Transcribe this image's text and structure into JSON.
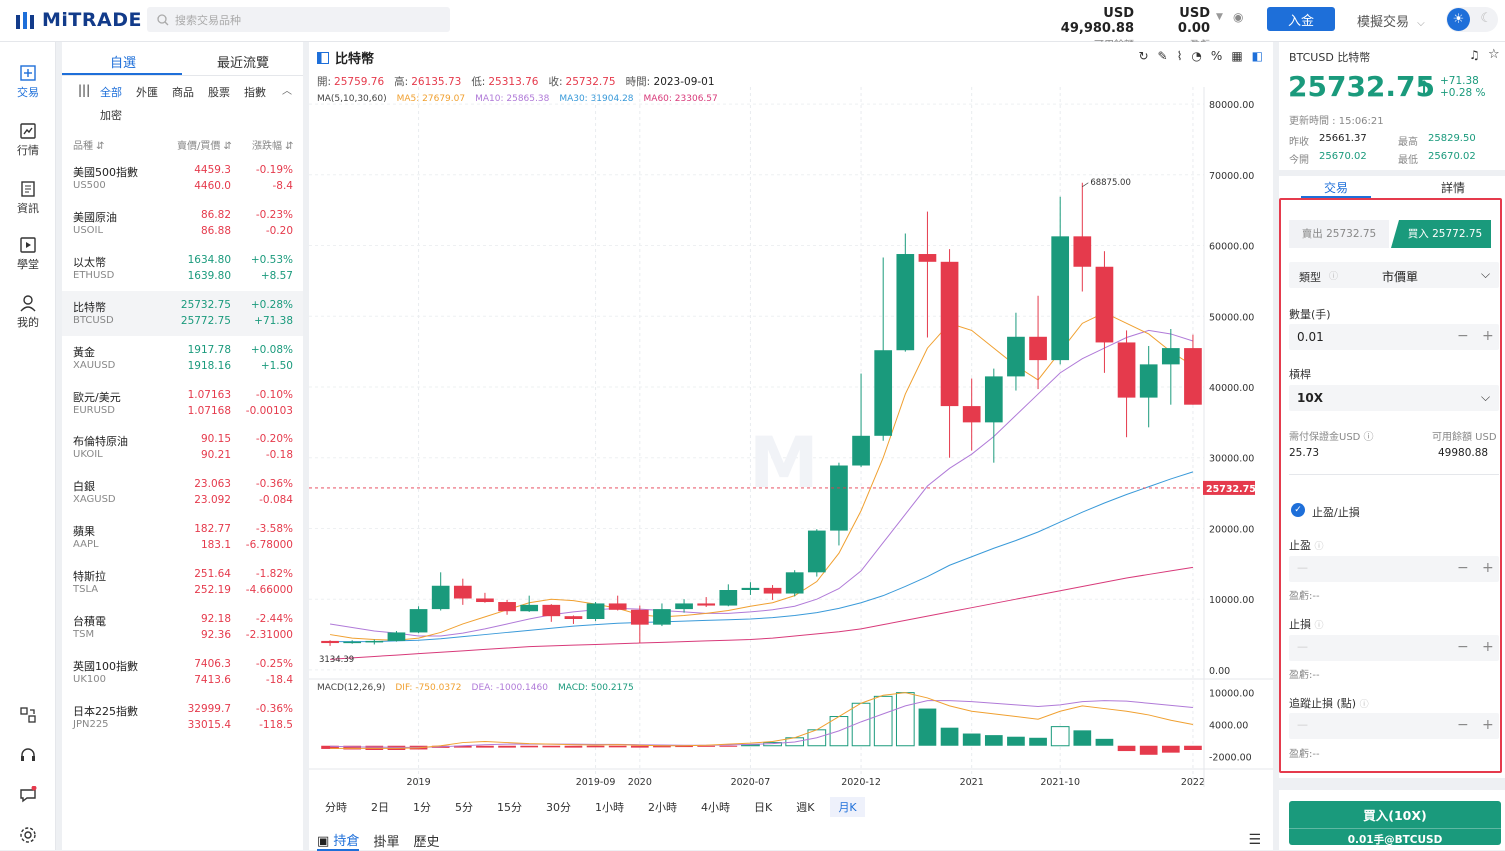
{
  "brand": {
    "name": "MiTRADE"
  },
  "search": {
    "placeholder": "搜索交易品种"
  },
  "account": {
    "available_value": "USD 49,980.88",
    "available_label": "可用餘額",
    "pnl_value": "USD 0.00",
    "pnl_label": "盈虧"
  },
  "header": {
    "deposit": "入金",
    "mode": "模擬交易"
  },
  "nav": [
    {
      "label": "交易",
      "icon": "trade-icon"
    },
    {
      "label": "行情",
      "icon": "chart-icon"
    },
    {
      "label": "資訊",
      "icon": "news-icon"
    },
    {
      "label": "學堂",
      "icon": "play-icon"
    },
    {
      "label": "我的",
      "icon": "user-icon"
    }
  ],
  "watchlist": {
    "tabs": [
      "自選",
      "最近流覽"
    ],
    "categories": [
      "全部",
      "外匯",
      "商品",
      "股票",
      "指數",
      "加密"
    ],
    "columns": [
      "品種",
      "賣價/買價",
      "漲跌幅"
    ],
    "rows": [
      {
        "name": "美國500指數",
        "code": "US500",
        "bid": "4459.3",
        "ask": "4460.0",
        "pct": "-0.19%",
        "chg": "-8.4",
        "dir": "dn"
      },
      {
        "name": "美國原油",
        "code": "USOIL",
        "bid": "86.82",
        "ask": "86.88",
        "pct": "-0.23%",
        "chg": "-0.20",
        "dir": "dn"
      },
      {
        "name": "以太幣",
        "code": "ETHUSD",
        "bid": "1634.80",
        "ask": "1639.80",
        "pct": "+0.53%",
        "chg": "+8.57",
        "dir": "up"
      },
      {
        "name": "比特幣",
        "code": "BTCUSD",
        "bid": "25732.75",
        "ask": "25772.75",
        "pct": "+0.28%",
        "chg": "+71.38",
        "dir": "up"
      },
      {
        "name": "黃金",
        "code": "XAUUSD",
        "bid": "1917.78",
        "ask": "1918.16",
        "pct": "+0.08%",
        "chg": "+1.50",
        "dir": "up"
      },
      {
        "name": "歐元/美元",
        "code": "EURUSD",
        "bid": "1.07163",
        "ask": "1.07168",
        "pct": "-0.10%",
        "chg": "-0.00103",
        "dir": "dn"
      },
      {
        "name": "布倫特原油",
        "code": "UKOIL",
        "bid": "90.15",
        "ask": "90.21",
        "pct": "-0.20%",
        "chg": "-0.18",
        "dir": "dn"
      },
      {
        "name": "白銀",
        "code": "XAGUSD",
        "bid": "23.063",
        "ask": "23.092",
        "pct": "-0.36%",
        "chg": "-0.084",
        "dir": "dn"
      },
      {
        "name": "蘋果",
        "code": "AAPL",
        "bid": "182.77",
        "ask": "183.1",
        "pct": "-3.58%",
        "chg": "-6.78000",
        "dir": "dn"
      },
      {
        "name": "特斯拉",
        "code": "TSLA",
        "bid": "251.64",
        "ask": "252.19",
        "pct": "-1.82%",
        "chg": "-4.66000",
        "dir": "dn"
      },
      {
        "name": "台積電",
        "code": "TSM",
        "bid": "92.18",
        "ask": "92.36",
        "pct": "-2.44%",
        "chg": "-2.31000",
        "dir": "dn"
      },
      {
        "name": "英國100指數",
        "code": "UK100",
        "bid": "7406.3",
        "ask": "7413.6",
        "pct": "-0.25%",
        "chg": "-18.4",
        "dir": "dn"
      },
      {
        "name": "日本225指數",
        "code": "JPN225",
        "bid": "32999.7",
        "ask": "33015.4",
        "pct": "-0.36%",
        "chg": "-118.5",
        "dir": "dn"
      }
    ]
  },
  "chart_header": {
    "title": "比特幣",
    "ohlc": [
      {
        "k": "開:",
        "v": "25759.76"
      },
      {
        "k": "高:",
        "v": "26135.73"
      },
      {
        "k": "低:",
        "v": "25313.76"
      },
      {
        "k": "收:",
        "v": "25732.75"
      }
    ],
    "time_label": "時間:",
    "time_value": "2023-09-01",
    "ma_legend": {
      "name": "MA(5,10,30,60)",
      "ma5": "MA5: 27679.07",
      "ma10": "MA10: 25865.38",
      "ma30": "MA30: 31904.28",
      "ma60": "MA60: 23306.57"
    },
    "macd_legend": {
      "name": "MACD(12,26,9)",
      "dif": "DIF: -750.0372",
      "dea": "DEA: -1000.1460",
      "macd": "MACD: 500.2175"
    },
    "colors": {
      "up": "#1a9a7c",
      "down": "#e53a4c",
      "ma5": "#f0a030",
      "ma10": "#b07ad8",
      "ma30": "#3a9ad9",
      "ma60": "#d83a7a"
    }
  },
  "chart_data": {
    "type": "candlestick",
    "x_tick_labels": [
      "2019",
      "2019-09",
      "2020",
      "2020-07",
      "2020-12",
      "2021",
      "2021-10",
      "2022"
    ],
    "y_tick_labels": [
      "80000.00",
      "70000.00",
      "60000.00",
      "50000.00",
      "40000.00",
      "30000.00",
      "20000.00",
      "10000.00",
      "0.00"
    ],
    "ylim": [
      -1000,
      81000
    ],
    "current_price": "25732.75",
    "max_label": "68875.00",
    "min_label": "3134.39",
    "candles": [
      [
        4100,
        3800,
        4200,
        3400
      ],
      [
        3800,
        4000,
        4200,
        3700
      ],
      [
        4000,
        4100,
        4300,
        3600
      ],
      [
        4100,
        5300,
        5500,
        4000
      ],
      [
        5300,
        8600,
        9000,
        5200
      ],
      [
        8600,
        11900,
        13800,
        8400
      ],
      [
        11900,
        10100,
        12900,
        9200
      ],
      [
        10100,
        9600,
        10900,
        9500
      ],
      [
        9600,
        8300,
        9900,
        7800
      ],
      [
        8300,
        9200,
        10500,
        8200
      ],
      [
        9200,
        7600,
        9300,
        6800
      ],
      [
        7600,
        7200,
        7700,
        6500
      ],
      [
        7200,
        9400,
        9600,
        6900
      ],
      [
        9400,
        8500,
        10500,
        8400
      ],
      [
        8500,
        6400,
        9100,
        3800
      ],
      [
        6400,
        8600,
        9400,
        6200
      ],
      [
        8600,
        9400,
        10000,
        8100
      ],
      [
        9400,
        9100,
        10300,
        8900
      ],
      [
        9100,
        11300,
        12100,
        9000
      ],
      [
        11300,
        11600,
        12400,
        10600
      ],
      [
        11600,
        10800,
        12000,
        9900
      ],
      [
        10800,
        13800,
        14100,
        10400
      ],
      [
        13800,
        19700,
        19900,
        13200
      ],
      [
        19700,
        28900,
        29300,
        17600
      ],
      [
        28900,
        33100,
        41900,
        28700
      ],
      [
        33100,
        45200,
        58300,
        32400
      ],
      [
        45200,
        58800,
        61700,
        45000
      ],
      [
        58800,
        57700,
        64800,
        47000
      ],
      [
        57700,
        37300,
        59500,
        30000
      ],
      [
        37300,
        35000,
        41200,
        31000
      ],
      [
        35000,
        41500,
        42600,
        29300
      ],
      [
        41500,
        47100,
        50500,
        39500
      ],
      [
        47100,
        43800,
        52900,
        39700
      ],
      [
        43800,
        61300,
        66900,
        43200
      ],
      [
        61300,
        57000,
        68875,
        53500
      ],
      [
        57000,
        46300,
        59200,
        42000
      ],
      [
        46300,
        38500,
        48000,
        32900
      ],
      [
        38500,
        43200,
        45800,
        34300
      ],
      [
        43200,
        45500,
        48200,
        37500
      ],
      [
        45500,
        37500,
        47400,
        37500
      ]
    ],
    "y2_tick_labels": [
      "10000.00",
      "4000.00",
      "-2000.00"
    ],
    "y2lim": [
      -4000,
      12000
    ],
    "macd_hist": [
      -600,
      -700,
      -800,
      -800,
      -700,
      -400,
      -350,
      -350,
      -350,
      -300,
      -300,
      -350,
      -300,
      -300,
      -350,
      -300,
      -250,
      -200,
      -100,
      200,
      600,
      1500,
      3000,
      5500,
      8000,
      9300,
      10000,
      7000,
      3400,
      2300,
      2000,
      1700,
      1500,
      3600,
      2900,
      1300,
      -1000,
      -1700,
      -1300,
      -800
    ],
    "macd_dif": [
      -500,
      -500,
      -500,
      -500,
      -400,
      0,
      600,
      800,
      600,
      400,
      300,
      200,
      150,
      200,
      100,
      0,
      0,
      100,
      300,
      500,
      800,
      1500,
      3000,
      5500,
      8000,
      9500,
      10000,
      9000,
      7500,
      6500,
      6000,
      5500,
      5000,
      6500,
      7500,
      7000,
      6500,
      5800,
      4800,
      4000
    ],
    "macd_dea": [
      -100,
      -200,
      -250,
      -300,
      -300,
      -200,
      0,
      200,
      300,
      300,
      300,
      300,
      250,
      250,
      200,
      150,
      100,
      100,
      150,
      250,
      400,
      700,
      1500,
      2800,
      4500,
      6000,
      7500,
      8500,
      8500,
      8300,
      8000,
      7700,
      7400,
      7700,
      8300,
      8500,
      8400,
      8000,
      7600,
      7200
    ],
    "ma5": [
      5000,
      4500,
      4300,
      4200,
      4500,
      5300,
      6500,
      7500,
      8500,
      9500,
      10000,
      9800,
      9300,
      8700,
      7800,
      7500,
      7700,
      8000,
      8400,
      9000,
      9500,
      10500,
      12500,
      16500,
      22500,
      30000,
      39000,
      45500,
      49000,
      48000,
      45500,
      43000,
      41000,
      45000,
      49000,
      50500,
      49000,
      47500,
      45000,
      43000
    ],
    "ma10": [
      6500,
      6000,
      5500,
      5200,
      4800,
      4800,
      5200,
      5800,
      6500,
      7200,
      7800,
      8200,
      8500,
      8700,
      8600,
      8400,
      8200,
      8000,
      8000,
      8200,
      8500,
      9000,
      10000,
      11500,
      14000,
      18000,
      22000,
      26000,
      28500,
      30500,
      33000,
      36000,
      39000,
      42000,
      44000,
      45500,
      47000,
      48000,
      47500,
      46500
    ],
    "ma30": [
      4000,
      4000,
      4000,
      4100,
      4200,
      4400,
      4700,
      5000,
      5300,
      5600,
      5900,
      6200,
      6400,
      6600,
      6700,
      6800,
      6900,
      7000,
      7100,
      7200,
      7400,
      7700,
      8100,
      8700,
      9500,
      10500,
      11800,
      13200,
      14800,
      16000,
      17200,
      18300,
      19500,
      20900,
      22300,
      23600,
      24800,
      25900,
      27000,
      28000
    ],
    "ma60": [
      1500,
      1700,
      1900,
      2100,
      2300,
      2500,
      2700,
      2900,
      3100,
      3300,
      3400,
      3500,
      3600,
      3700,
      3800,
      3900,
      4000,
      4100,
      4200,
      4300,
      4500,
      4800,
      5100,
      5400,
      5800,
      6400,
      7000,
      7600,
      8200,
      8800,
      9400,
      10000,
      10600,
      11200,
      11800,
      12400,
      13000,
      13500,
      14000,
      14500
    ]
  },
  "timeframes": [
    "分時",
    "2日",
    "1分",
    "5分",
    "15分",
    "30分",
    "1小時",
    "2小時",
    "4小時",
    "日K",
    "週K",
    "月K"
  ],
  "bottom_tabs": [
    "持倉",
    "掛單",
    "歷史"
  ],
  "quote": {
    "symbol": "BTCUSD",
    "name": "比特幣",
    "price": "25732.75",
    "change": "+71.38",
    "change_pct": "+0.28 %",
    "update_label": "更新時間 : 15:06:21",
    "prev_close_label": "昨收",
    "prev_close": "25661.37",
    "open_label": "今開",
    "open": "25670.02",
    "high_label": "最高",
    "high": "25829.50",
    "low_label": "最低",
    "low": "25670.02"
  },
  "right_tabs": [
    "交易",
    "詳情"
  ],
  "trade": {
    "sell": "賣出 25732.75",
    "buy": "買入 25772.75",
    "type_label": "類型",
    "type_value": "市價單",
    "qty_label": "數量(手)",
    "qty_value": "0.01",
    "leverage_label": "槓桿",
    "leverage_value": "10X",
    "margin_label": "需付保證金USD",
    "margin_value": "25.73",
    "available_label": "可用餘額 USD",
    "available_value": "49980.88",
    "sltp_label": "止盈/止損",
    "tp_label": "止盈",
    "sl_label": "止損",
    "trail_label": "追蹤止損 (點)",
    "field_placeholder": "—",
    "pnl_label": "盈虧:--",
    "confirm_main": "買入(10X)",
    "confirm_sub": "0.01手@BTCUSD"
  }
}
